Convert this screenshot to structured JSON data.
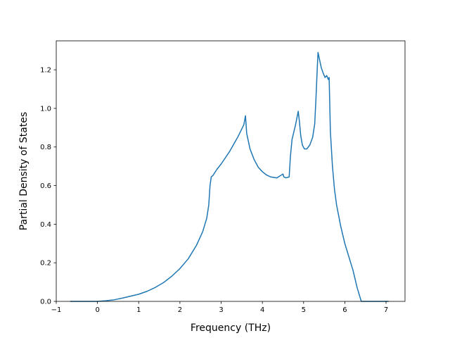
{
  "chart_data": {
    "type": "line",
    "title": "",
    "xlabel": "Frequency (THz)",
    "ylabel": "Partial Density of States",
    "xlim": [
      -1.0,
      7.46
    ],
    "ylim": [
      0.0,
      1.35
    ],
    "xticks": [
      -1,
      0,
      1,
      2,
      3,
      4,
      5,
      6,
      7
    ],
    "xtick_labels": [
      "−1",
      "0",
      "1",
      "2",
      "3",
      "4",
      "5",
      "6",
      "7"
    ],
    "yticks": [
      0.0,
      0.2,
      0.4,
      0.6,
      0.8,
      1.0,
      1.2
    ],
    "ytick_labels": [
      "0.0",
      "0.2",
      "0.4",
      "0.6",
      "0.8",
      "1.0",
      "1.2"
    ],
    "grid": false,
    "legend": "none",
    "series": [
      {
        "color": "#1f77b4",
        "x": [
          -0.65,
          0.0,
          0.2,
          0.4,
          0.6,
          0.8,
          1.0,
          1.2,
          1.4,
          1.6,
          1.8,
          2.0,
          2.2,
          2.4,
          2.55,
          2.65,
          2.7,
          2.73,
          2.76,
          2.8,
          2.9,
          3.0,
          3.2,
          3.4,
          3.55,
          3.59,
          3.62,
          3.7,
          3.8,
          3.9,
          4.0,
          4.1,
          4.2,
          4.35,
          4.5,
          4.52,
          4.57,
          4.65,
          4.68,
          4.72,
          4.8,
          4.87,
          4.9,
          4.93,
          4.97,
          5.02,
          5.08,
          5.15,
          5.22,
          5.27,
          5.3,
          5.33,
          5.35,
          5.38,
          5.43,
          5.48,
          5.52,
          5.56,
          5.6,
          5.62,
          5.65,
          5.7,
          5.75,
          5.8,
          5.9,
          6.0,
          6.1,
          6.2,
          6.3,
          6.4,
          6.44,
          6.46,
          7.05
        ],
        "y": [
          0.0,
          0.0,
          0.003,
          0.008,
          0.017,
          0.027,
          0.037,
          0.052,
          0.072,
          0.097,
          0.13,
          0.17,
          0.22,
          0.29,
          0.36,
          0.43,
          0.5,
          0.6,
          0.645,
          0.652,
          0.685,
          0.712,
          0.775,
          0.85,
          0.915,
          0.962,
          0.87,
          0.79,
          0.735,
          0.695,
          0.672,
          0.655,
          0.645,
          0.64,
          0.66,
          0.645,
          0.64,
          0.645,
          0.75,
          0.84,
          0.91,
          0.985,
          0.93,
          0.86,
          0.81,
          0.79,
          0.79,
          0.81,
          0.85,
          0.92,
          1.05,
          1.2,
          1.29,
          1.26,
          1.21,
          1.18,
          1.16,
          1.17,
          1.15,
          1.16,
          0.88,
          0.7,
          0.58,
          0.5,
          0.39,
          0.3,
          0.23,
          0.16,
          0.07,
          0.0,
          0.0,
          0.0,
          0.0
        ]
      }
    ]
  }
}
